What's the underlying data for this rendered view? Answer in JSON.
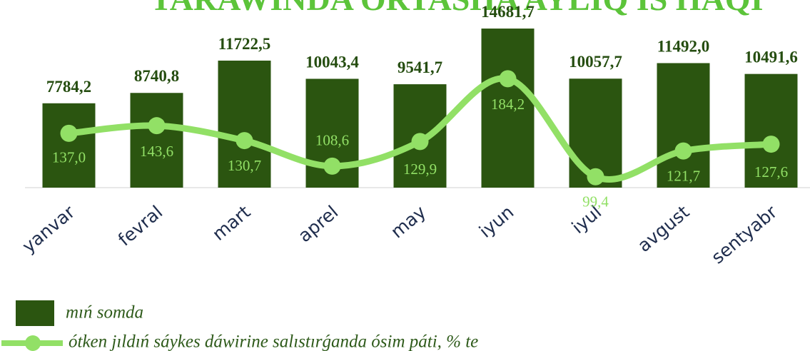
{
  "chart_data": {
    "type": "bar_line",
    "title": "TARAWINDA ORTASHA AYLIQ IS HAQI",
    "categories": [
      "yanvar",
      "fevral",
      "mart",
      "aprel",
      "may",
      "iyun",
      "iyul",
      "avgust",
      "sentyabr"
    ],
    "series": [
      {
        "name": "mıń somda",
        "type": "bar",
        "color": "#2b5510",
        "values": [
          7784.2,
          8740.8,
          11722.5,
          10043.4,
          9541.7,
          14681.7,
          10057.7,
          11492.0,
          10491.6
        ],
        "value_labels": [
          "7784,2",
          "8740,8",
          "11722,5",
          "10043,4",
          "9541,7",
          "14681,7",
          "10057,7",
          "11492,0",
          "10491,6"
        ]
      },
      {
        "name": "ótken jıldıń sáykes dáwirine salıstırǵanda ósim páti, % te",
        "type": "line",
        "axis": "y2",
        "color": "#92e066",
        "values": [
          137.0,
          143.6,
          130.7,
          108.6,
          129.9,
          184.2,
          99.4,
          121.7,
          127.6
        ],
        "value_labels": [
          "137,0",
          "143,6",
          "130,7",
          "108,6",
          "129,9",
          "184,2",
          "99,4",
          "121,7",
          "127,6"
        ]
      }
    ],
    "ylim": [
      0,
      16000
    ],
    "y2lim": [
      90,
      240
    ]
  }
}
